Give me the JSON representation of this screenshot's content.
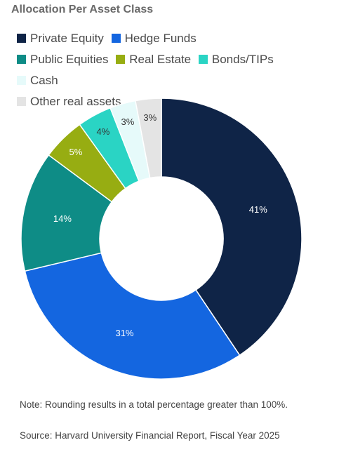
{
  "chart_data": {
    "type": "pie",
    "variant": "donut",
    "title": "Allocation Per Asset Class",
    "categories": [
      "Private Equity",
      "Hedge Funds",
      "Public Equities",
      "Real Estate",
      "Bonds/TIPs",
      "Cash",
      "Other real assets"
    ],
    "values": [
      41,
      31,
      14,
      5,
      4,
      3,
      3
    ],
    "value_labels": [
      "41%",
      "31%",
      "14%",
      "5%",
      "4%",
      "3%",
      "3%"
    ],
    "colors": [
      "#0f2447",
      "#1466e0",
      "#0e8c86",
      "#97ad12",
      "#2ad4c4",
      "#e6fafa",
      "#e4e4e4"
    ],
    "label_colors": [
      "#ffffff",
      "#ffffff",
      "#ffffff",
      "#ffffff",
      "#333333",
      "#333333",
      "#333333"
    ],
    "legend_position": "top",
    "start_angle": "top",
    "direction": "clockwise"
  },
  "note": "Note: Rounding results in a total percentage greater than 100%.",
  "source": "Source: Harvard University Financial Report, Fiscal Year 2025"
}
